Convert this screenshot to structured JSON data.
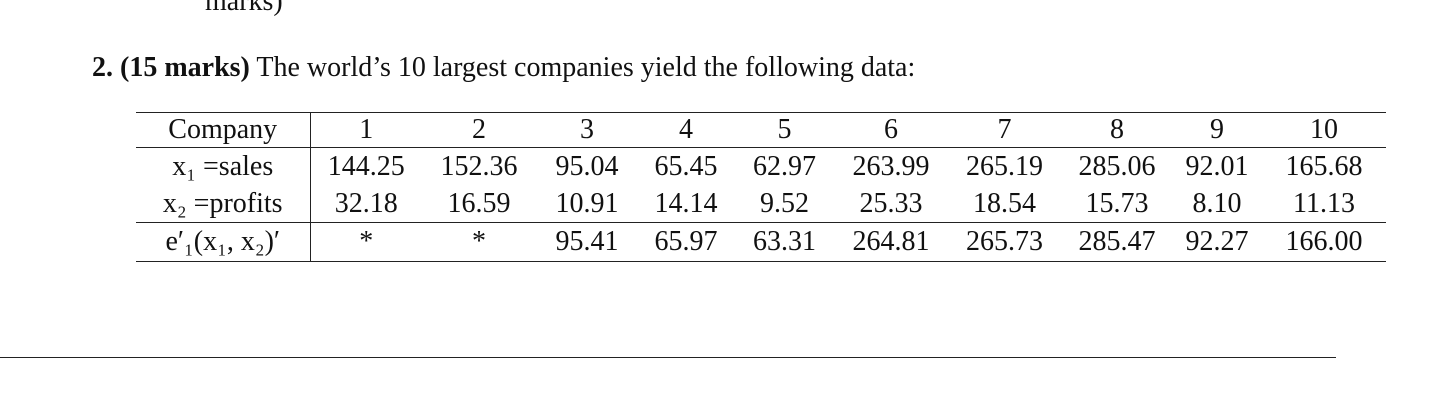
{
  "prev_fragment": "marks)",
  "question": {
    "number": "2.",
    "marks": "(15 marks)",
    "text": "The world’s 10 largest companies yield the following data:"
  },
  "table": {
    "header": [
      "Company",
      "1",
      "2",
      "3",
      "4",
      "5",
      "6",
      "7",
      "8",
      "9",
      "10"
    ],
    "rows": [
      [
        "x₁ =sales",
        "144.25",
        "152.36",
        "95.04",
        "65.45",
        "62.97",
        "263.99",
        "265.19",
        "285.06",
        "92.01",
        "165.68"
      ],
      [
        "x₂ =profits",
        "32.18",
        "16.59",
        "10.91",
        "14.14",
        "9.52",
        "25.33",
        "18.54",
        "15.73",
        "8.10",
        "11.13"
      ],
      [
        "e′₁(x₁, x₂)′",
        "*",
        "*",
        "95.41",
        "65.97",
        "63.31",
        "264.81",
        "265.73",
        "285.47",
        "92.27",
        "166.00"
      ]
    ]
  }
}
